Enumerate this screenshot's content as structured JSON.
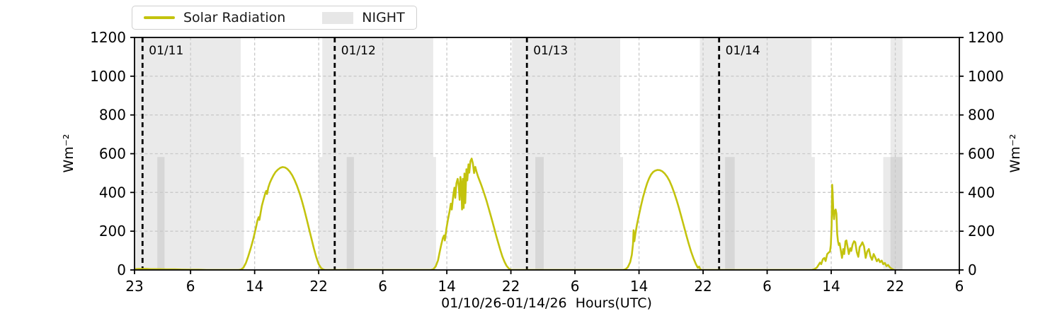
{
  "legend": {
    "solar_label": "Solar Radiation",
    "night_label": "NIGHT"
  },
  "chart_data": {
    "type": "line",
    "title": "",
    "xlabel": "01/10/26-01/14/26  Hours(UTC)",
    "ylabel": "Wm⁻²",
    "ylabel_right": "Wm⁻²",
    "ylim": [
      0,
      1200
    ],
    "x_span_hours": 103,
    "x_start_time": "23:00 UTC 01/10/26",
    "grid": true,
    "legend_position": "top-left",
    "y_ticks": [
      0,
      200,
      400,
      600,
      800,
      1000,
      1200
    ],
    "x_ticks": [
      {
        "hour": 0,
        "label": "23"
      },
      {
        "hour": 7,
        "label": "6"
      },
      {
        "hour": 15,
        "label": "14"
      },
      {
        "hour": 23,
        "label": "22"
      },
      {
        "hour": 31,
        "label": "6"
      },
      {
        "hour": 39,
        "label": "14"
      },
      {
        "hour": 47,
        "label": "22"
      },
      {
        "hour": 55,
        "label": "6"
      },
      {
        "hour": 63,
        "label": "14"
      },
      {
        "hour": 71,
        "label": "22"
      },
      {
        "hour": 79,
        "label": "6"
      },
      {
        "hour": 87,
        "label": "14"
      },
      {
        "hour": 95,
        "label": "22"
      },
      {
        "hour": 103,
        "label": "6"
      }
    ],
    "day_markers": [
      {
        "hour": 1,
        "label": "01/11"
      },
      {
        "hour": 25,
        "label": "01/12"
      },
      {
        "hour": 49,
        "label": "01/13"
      },
      {
        "hour": 73,
        "label": "01/14"
      }
    ],
    "night_bands": [
      [
        0,
        13.26
      ],
      [
        23.45,
        37.3
      ],
      [
        47.15,
        60.65
      ],
      [
        70.6,
        84.55
      ],
      [
        94.4,
        95.9
      ]
    ],
    "night_low_bands": [
      [
        2.85,
        3.75
      ],
      [
        13.26,
        13.65
      ],
      [
        23.0,
        23.45
      ],
      [
        26.5,
        27.4
      ],
      [
        37.3,
        37.65
      ],
      [
        50.05,
        51.1
      ],
      [
        60.65,
        61.0
      ],
      [
        73.75,
        74.95
      ],
      [
        84.55,
        84.95
      ],
      [
        93.5,
        95.9
      ]
    ],
    "night_low_top": 583,
    "series": [
      {
        "name": "Solar Radiation",
        "units": "Wm-2",
        "points": [
          [
            0,
            4
          ],
          [
            0.5,
            5
          ],
          [
            1,
            5
          ],
          [
            1.5,
            5
          ],
          [
            2,
            4
          ],
          [
            3,
            4
          ],
          [
            4,
            3
          ],
          [
            5,
            3
          ],
          [
            6,
            2
          ],
          [
            7,
            1
          ],
          [
            8,
            1
          ],
          [
            9,
            0
          ],
          [
            10,
            0
          ],
          [
            12,
            0
          ],
          [
            13,
            0
          ],
          [
            13.3,
            2
          ],
          [
            13.6,
            12
          ],
          [
            13.9,
            35
          ],
          [
            14.2,
            70
          ],
          [
            14.5,
            110
          ],
          [
            14.8,
            155
          ],
          [
            15,
            190
          ],
          [
            15.2,
            225
          ],
          [
            15.35,
            255
          ],
          [
            15.5,
            272
          ],
          [
            15.6,
            258
          ],
          [
            15.75,
            295
          ],
          [
            15.9,
            330
          ],
          [
            16.1,
            362
          ],
          [
            16.3,
            392
          ],
          [
            16.45,
            408
          ],
          [
            16.55,
            392
          ],
          [
            16.7,
            425
          ],
          [
            16.9,
            450
          ],
          [
            17.1,
            468
          ],
          [
            17.35,
            488
          ],
          [
            17.6,
            505
          ],
          [
            17.9,
            518
          ],
          [
            18.2,
            527
          ],
          [
            18.5,
            531
          ],
          [
            18.8,
            529
          ],
          [
            19.1,
            521
          ],
          [
            19.4,
            507
          ],
          [
            19.7,
            488
          ],
          [
            20,
            463
          ],
          [
            20.3,
            433
          ],
          [
            20.6,
            398
          ],
          [
            20.9,
            357
          ],
          [
            21.2,
            311
          ],
          [
            21.5,
            262
          ],
          [
            21.8,
            211
          ],
          [
            22.1,
            160
          ],
          [
            22.4,
            110
          ],
          [
            22.7,
            65
          ],
          [
            23,
            30
          ],
          [
            23.3,
            10
          ],
          [
            23.6,
            2
          ],
          [
            23.8,
            0
          ],
          [
            24.5,
            0
          ],
          [
            26,
            0
          ],
          [
            28,
            0
          ],
          [
            30,
            0
          ],
          [
            32,
            0
          ],
          [
            34,
            0
          ],
          [
            36,
            0
          ],
          [
            37,
            0
          ],
          [
            37.3,
            3
          ],
          [
            37.6,
            18
          ],
          [
            37.9,
            50
          ],
          [
            38.1,
            90
          ],
          [
            38.3,
            130
          ],
          [
            38.5,
            165
          ],
          [
            38.65,
            178
          ],
          [
            38.75,
            152
          ],
          [
            38.95,
            215
          ],
          [
            39.15,
            262
          ],
          [
            39.35,
            305
          ],
          [
            39.5,
            342
          ],
          [
            39.62,
            312
          ],
          [
            39.8,
            385
          ],
          [
            39.95,
            425
          ],
          [
            40.05,
            372
          ],
          [
            40.2,
            448
          ],
          [
            40.35,
            470
          ],
          [
            40.5,
            430
          ],
          [
            40.6,
            362
          ],
          [
            40.7,
            480
          ],
          [
            40.8,
            440
          ],
          [
            40.9,
            312
          ],
          [
            41,
            470
          ],
          [
            41.1,
            320
          ],
          [
            41.2,
            498
          ],
          [
            41.3,
            345
          ],
          [
            41.45,
            520
          ],
          [
            41.55,
            462
          ],
          [
            41.7,
            545
          ],
          [
            41.8,
            502
          ],
          [
            41.95,
            562
          ],
          [
            42.1,
            575
          ],
          [
            42.25,
            550
          ],
          [
            42.4,
            500
          ],
          [
            42.55,
            532
          ],
          [
            42.7,
            508
          ],
          [
            42.9,
            482
          ],
          [
            43.1,
            460
          ],
          [
            43.3,
            438
          ],
          [
            43.5,
            415
          ],
          [
            43.7,
            390
          ],
          [
            43.95,
            358
          ],
          [
            44.2,
            322
          ],
          [
            44.45,
            285
          ],
          [
            44.7,
            248
          ],
          [
            44.95,
            210
          ],
          [
            45.2,
            172
          ],
          [
            45.45,
            135
          ],
          [
            45.7,
            100
          ],
          [
            45.95,
            68
          ],
          [
            46.2,
            42
          ],
          [
            46.45,
            22
          ],
          [
            46.7,
            9
          ],
          [
            46.95,
            2
          ],
          [
            47.1,
            0
          ],
          [
            48,
            0
          ],
          [
            50,
            0
          ],
          [
            52,
            0
          ],
          [
            54,
            0
          ],
          [
            56,
            0
          ],
          [
            58,
            0
          ],
          [
            60,
            0
          ],
          [
            61,
            0
          ],
          [
            61.3,
            3
          ],
          [
            61.6,
            14
          ],
          [
            61.9,
            40
          ],
          [
            62.1,
            78
          ],
          [
            62.25,
            135
          ],
          [
            62.32,
            205
          ],
          [
            62.42,
            148
          ],
          [
            62.55,
            188
          ],
          [
            62.75,
            235
          ],
          [
            63,
            285
          ],
          [
            63.25,
            332
          ],
          [
            63.5,
            375
          ],
          [
            63.75,
            413
          ],
          [
            64,
            446
          ],
          [
            64.25,
            472
          ],
          [
            64.5,
            492
          ],
          [
            64.75,
            505
          ],
          [
            65,
            512
          ],
          [
            65.3,
            516
          ],
          [
            65.6,
            515
          ],
          [
            65.9,
            509
          ],
          [
            66.2,
            498
          ],
          [
            66.5,
            482
          ],
          [
            66.8,
            460
          ],
          [
            67.1,
            432
          ],
          [
            67.4,
            398
          ],
          [
            67.7,
            360
          ],
          [
            68,
            318
          ],
          [
            68.3,
            273
          ],
          [
            68.6,
            227
          ],
          [
            68.9,
            180
          ],
          [
            69.2,
            136
          ],
          [
            69.5,
            95
          ],
          [
            69.8,
            60
          ],
          [
            70.1,
            30
          ],
          [
            70.35,
            11
          ],
          [
            70.5,
            17
          ],
          [
            70.65,
            4
          ],
          [
            70.8,
            0
          ],
          [
            72,
            0
          ],
          [
            74,
            0
          ],
          [
            76,
            0
          ],
          [
            78,
            0
          ],
          [
            80,
            0
          ],
          [
            82,
            0
          ],
          [
            84,
            0
          ],
          [
            84.6,
            0
          ],
          [
            84.9,
            4
          ],
          [
            85.2,
            12
          ],
          [
            85.45,
            28
          ],
          [
            85.6,
            38
          ],
          [
            85.75,
            30
          ],
          [
            85.95,
            55
          ],
          [
            86.15,
            62
          ],
          [
            86.3,
            46
          ],
          [
            86.5,
            82
          ],
          [
            86.7,
            90
          ],
          [
            86.85,
            95
          ],
          [
            86.95,
            130
          ],
          [
            87.05,
            230
          ],
          [
            87.12,
            440
          ],
          [
            87.18,
            395
          ],
          [
            87.25,
            310
          ],
          [
            87.35,
            262
          ],
          [
            87.45,
            305
          ],
          [
            87.55,
            312
          ],
          [
            87.65,
            290
          ],
          [
            87.75,
            185
          ],
          [
            87.85,
            148
          ],
          [
            87.95,
            128
          ],
          [
            88.05,
            138
          ],
          [
            88.2,
            100
          ],
          [
            88.35,
            62
          ],
          [
            88.5,
            108
          ],
          [
            88.62,
            82
          ],
          [
            88.78,
            148
          ],
          [
            88.9,
            152
          ],
          [
            89.05,
            118
          ],
          [
            89.2,
            82
          ],
          [
            89.38,
            112
          ],
          [
            89.5,
            98
          ],
          [
            89.68,
            132
          ],
          [
            89.85,
            148
          ],
          [
            90,
            143
          ],
          [
            90.2,
            92
          ],
          [
            90.38,
            68
          ],
          [
            90.55,
            118
          ],
          [
            90.72,
            128
          ],
          [
            90.9,
            143
          ],
          [
            91.1,
            122
          ],
          [
            91.3,
            62
          ],
          [
            91.5,
            95
          ],
          [
            91.7,
            108
          ],
          [
            91.9,
            70
          ],
          [
            92.1,
            52
          ],
          [
            92.3,
            82
          ],
          [
            92.5,
            65
          ],
          [
            92.7,
            45
          ],
          [
            92.9,
            56
          ],
          [
            93.1,
            40
          ],
          [
            93.3,
            48
          ],
          [
            93.5,
            30
          ],
          [
            93.7,
            36
          ],
          [
            93.9,
            20
          ],
          [
            94.1,
            26
          ],
          [
            94.35,
            12
          ],
          [
            94.6,
            5
          ],
          [
            94.85,
            0
          ],
          [
            95,
            0
          ]
        ]
      }
    ],
    "colors": {
      "line": "#c3c30e",
      "night": "rgba(90,90,90,0.125)",
      "grid": "#c9c9c9",
      "axis": "#000000",
      "date_label": "#595959",
      "legend_patch": "#e7e7e7"
    }
  }
}
